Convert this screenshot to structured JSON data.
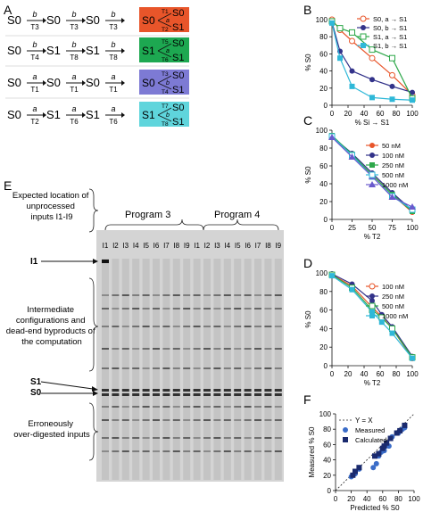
{
  "panel_letters": {
    "A": "A",
    "B": "B",
    "C": "C",
    "D": "D",
    "E": "E",
    "F": "F"
  },
  "panel_a": {
    "rows": [
      {
        "states": [
          "S0",
          "S0",
          "S0",
          "S0"
        ],
        "syms": [
          "b",
          "b",
          "b"
        ],
        "times": [
          "T3",
          "T3",
          "T3"
        ],
        "box": {
          "color": "#e8552a",
          "state": "S0",
          "out_top": "S0",
          "out_bot": "S1",
          "t_top": "T1",
          "t_bot": "T2",
          "sym": "a"
        }
      },
      {
        "states": [
          "S0",
          "S1",
          "S1",
          "S1"
        ],
        "syms": [
          "b",
          "b",
          "b"
        ],
        "times": [
          "T4",
          "T8",
          "T8"
        ],
        "box": {
          "color": "#1da851",
          "state": "S1",
          "out_top": "S0",
          "out_bot": "S1",
          "t_top": "T5",
          "t_bot": "T6",
          "sym": "a"
        }
      },
      {
        "states": [
          "S0",
          "S0",
          "S0",
          "S0"
        ],
        "syms": [
          "a",
          "a",
          "a"
        ],
        "times": [
          "T1",
          "T1",
          "T1"
        ],
        "box": {
          "color": "#7d7ad4",
          "state": "S0",
          "out_top": "S0",
          "out_bot": "S1",
          "t_top": "T3",
          "t_bot": "T4",
          "sym": "b"
        }
      },
      {
        "states": [
          "S0",
          "S1",
          "S1",
          "S1"
        ],
        "syms": [
          "a",
          "a",
          "a"
        ],
        "times": [
          "T2",
          "T6",
          "T6"
        ],
        "box": {
          "color": "#5fd5dc",
          "state": "S1",
          "out_top": "S0",
          "out_bot": "S1",
          "t_top": "T7",
          "t_bot": "T8",
          "sym": "b"
        }
      }
    ]
  },
  "chart_data": [
    {
      "panel": "B",
      "type": "line",
      "ylabel": "% S0",
      "xlabel": "% Si → S1",
      "xlim": [
        0,
        100
      ],
      "ylim": [
        0,
        100
      ],
      "xticks": [
        0,
        20,
        40,
        60,
        80,
        100
      ],
      "yticks": [
        0,
        20,
        40,
        60,
        80,
        100
      ],
      "legend": "top-right",
      "series": [
        {
          "name": "S0, a → S1",
          "color": "#e8552a",
          "marker": "circle-open",
          "x": [
            0,
            10,
            25,
            50,
            75,
            100
          ],
          "y": [
            100,
            88,
            75,
            55,
            35,
            12
          ]
        },
        {
          "name": "S0, b → S1",
          "color": "#33338a",
          "marker": "circle",
          "x": [
            0,
            10,
            25,
            50,
            75,
            100
          ],
          "y": [
            97,
            63,
            40,
            30,
            22,
            15
          ]
        },
        {
          "name": "S1, a → S1",
          "color": "#2ea84a",
          "marker": "square-open",
          "x": [
            0,
            10,
            25,
            50,
            75,
            100
          ],
          "y": [
            98,
            90,
            85,
            65,
            55,
            8
          ]
        },
        {
          "name": "S1, b → S1",
          "color": "#2fb8d8",
          "marker": "square",
          "x": [
            0,
            10,
            25,
            50,
            75,
            100
          ],
          "y": [
            96,
            55,
            22,
            9,
            7,
            6
          ]
        }
      ]
    },
    {
      "panel": "C",
      "type": "line",
      "ylabel": "% S0",
      "xlabel": "% T2",
      "xlim": [
        0,
        100
      ],
      "ylim": [
        0,
        100
      ],
      "xticks": [
        0,
        25,
        50,
        75,
        100
      ],
      "yticks": [
        0,
        20,
        40,
        60,
        80,
        100
      ],
      "legend": "top-right",
      "series": [
        {
          "name": "50 nM",
          "color": "#e8552a",
          "marker": "circle",
          "x": [
            0,
            25,
            50,
            75,
            100
          ],
          "y": [
            93,
            72,
            50,
            28,
            8
          ]
        },
        {
          "name": "100 nM",
          "color": "#33338a",
          "marker": "circle",
          "x": [
            0,
            25,
            50,
            75,
            100
          ],
          "y": [
            93,
            74,
            52,
            30,
            10
          ]
        },
        {
          "name": "250 nM",
          "color": "#2ea84a",
          "marker": "square",
          "x": [
            0,
            25,
            50,
            75,
            100
          ],
          "y": [
            94,
            73,
            50,
            28,
            9
          ]
        },
        {
          "name": "500 nM",
          "color": "#2fb8d8",
          "marker": "square-open",
          "x": [
            0,
            25,
            50,
            75,
            100
          ],
          "y": [
            93,
            72,
            48,
            26,
            11
          ]
        },
        {
          "name": "1000 nM",
          "color": "#6a5acd",
          "marker": "triangle",
          "x": [
            0,
            25,
            50,
            75,
            100
          ],
          "y": [
            92,
            70,
            48,
            25,
            14
          ]
        }
      ]
    },
    {
      "panel": "D",
      "type": "line",
      "ylabel": "% S0",
      "xlabel": "% T2",
      "xlim": [
        0,
        100
      ],
      "ylim": [
        0,
        100
      ],
      "xticks": [
        0,
        20,
        40,
        60,
        80,
        100
      ],
      "yticks": [
        0,
        20,
        40,
        60,
        80,
        100
      ],
      "legend": "top-right",
      "series": [
        {
          "name": "100 nM",
          "color": "#e8552a",
          "marker": "circle-open",
          "x": [
            0,
            25,
            50,
            62,
            75,
            100
          ],
          "y": [
            98,
            86,
            63,
            53,
            40,
            8
          ]
        },
        {
          "name": "250 nM",
          "color": "#33338a",
          "marker": "circle",
          "x": [
            0,
            25,
            50,
            62,
            75,
            100
          ],
          "y": [
            99,
            88,
            70,
            55,
            42,
            10
          ]
        },
        {
          "name": "500 nM",
          "color": "#2ea84a",
          "marker": "square-open",
          "x": [
            0,
            25,
            50,
            62,
            75,
            100
          ],
          "y": [
            98,
            84,
            60,
            52,
            40,
            9
          ]
        },
        {
          "name": "1000 nM",
          "color": "#2fb8d8",
          "marker": "square",
          "x": [
            0,
            25,
            50,
            62,
            75,
            100
          ],
          "y": [
            97,
            82,
            58,
            47,
            35,
            8
          ]
        }
      ]
    },
    {
      "panel": "F",
      "type": "scatter",
      "ylabel": "Measured % S0",
      "xlabel": "Predicted % S0",
      "xlim": [
        0,
        100
      ],
      "ylim": [
        0,
        100
      ],
      "xticks": [
        0,
        20,
        40,
        60,
        80,
        100
      ],
      "yticks": [
        0,
        20,
        40,
        60,
        80,
        100
      ],
      "legend": "top-left",
      "reference_line": {
        "name": "Y = X"
      },
      "series": [
        {
          "name": "Measured",
          "color": "#3a6cc8",
          "marker": "circle",
          "x": [
            20,
            22,
            25,
            30,
            48,
            52,
            55,
            58,
            60,
            62,
            65,
            68,
            72,
            80,
            85,
            88
          ],
          "y": [
            18,
            20,
            22,
            28,
            30,
            35,
            45,
            50,
            55,
            52,
            60,
            58,
            70,
            75,
            80,
            82
          ]
        },
        {
          "name": "Calculated",
          "color": "#1a2a6e",
          "marker": "square",
          "x": [
            22,
            25,
            30,
            50,
            55,
            60,
            62,
            65,
            70,
            78,
            82,
            88
          ],
          "y": [
            20,
            25,
            30,
            45,
            48,
            55,
            58,
            62,
            68,
            75,
            78,
            85
          ]
        }
      ]
    }
  ],
  "panel_e": {
    "program3": "Program 3",
    "program4": "Program 4",
    "lanes": [
      "I1",
      "I2",
      "I3",
      "I4",
      "I5",
      "I6",
      "I7",
      "I8",
      "I9",
      "I1",
      "I2",
      "I3",
      "I4",
      "I5",
      "I6",
      "I7",
      "I8",
      "I9"
    ],
    "annot_unprocessed": "Expected location of unprocessed inputs I1-I9",
    "annot_intermediate": "Intermediate configurations and dead-end byproducts of the computation",
    "annot_over": "Erroneously over-digested inputs",
    "marker_i1": "I1",
    "marker_s1": "S1",
    "marker_s0": "S0"
  }
}
